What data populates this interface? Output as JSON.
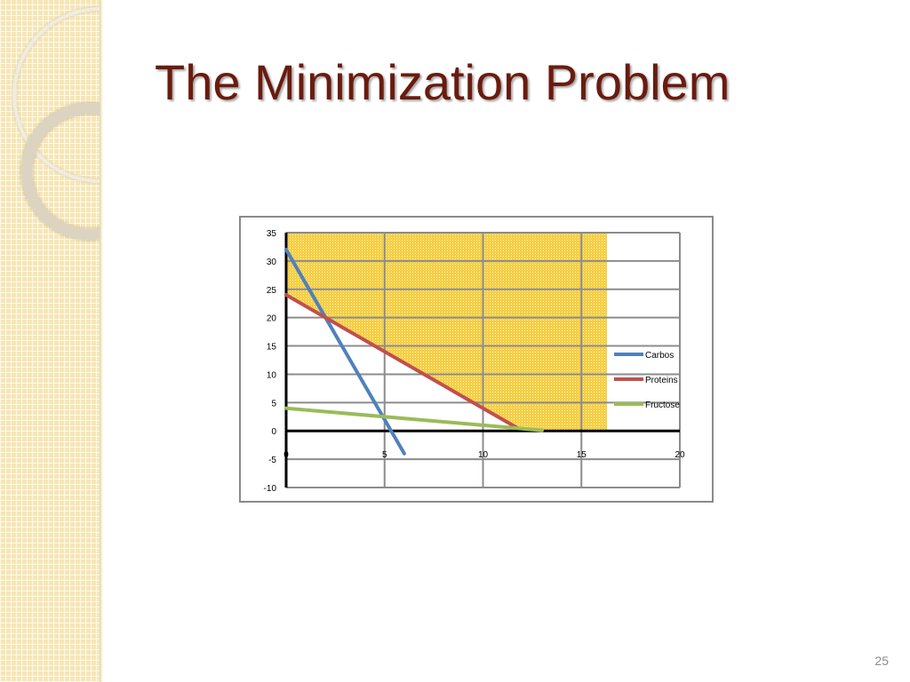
{
  "slide": {
    "title": "The Minimization Problem",
    "page_number": "25"
  },
  "theme": {
    "title_color": "#6a1b0d",
    "side_panel_color": "#f7e6b5",
    "feasible_region_color": "#f5cf47"
  },
  "chart_data": {
    "type": "line",
    "title": "",
    "xlabel": "",
    "ylabel": "",
    "xlim": [
      0,
      20
    ],
    "ylim": [
      -10,
      35
    ],
    "xticks": [
      "0",
      "5",
      "10",
      "15",
      "20"
    ],
    "yticks": [
      "35",
      "30",
      "25",
      "20",
      "15",
      "10",
      "5",
      "0",
      "-5",
      "-10"
    ],
    "grid": true,
    "legend_position": "right",
    "series": [
      {
        "name": "Carbos",
        "color": "#4f81bd",
        "points": [
          [
            0,
            32
          ],
          [
            6,
            -4
          ]
        ]
      },
      {
        "name": "Proteins",
        "color": "#c0504d",
        "points": [
          [
            0,
            24
          ],
          [
            11.7,
            0.6
          ]
        ]
      },
      {
        "name": "Fructose",
        "color": "#9bbb59",
        "points": [
          [
            0,
            4
          ],
          [
            13,
            0.1
          ]
        ]
      }
    ],
    "feasible_region": {
      "boundary": [
        [
          0,
          35
        ],
        [
          16.3,
          35
        ],
        [
          16.3,
          0
        ],
        [
          14,
          0
        ],
        [
          11.7,
          0.6
        ],
        [
          2,
          20
        ],
        [
          0,
          24
        ]
      ]
    }
  }
}
